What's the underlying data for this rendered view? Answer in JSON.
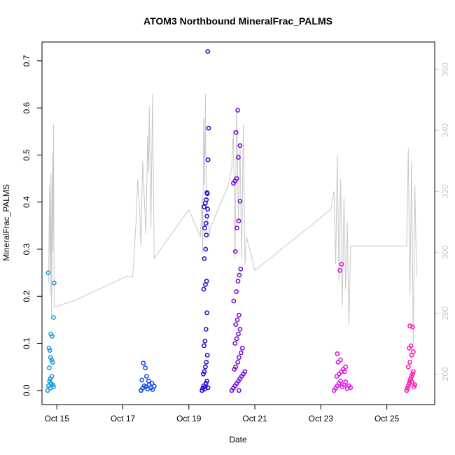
{
  "chart_data": {
    "type": "scatter",
    "title": "ATOM3 Northbound MineralFrac_PALMS",
    "xlabel": "Date",
    "ylabel": "MineralFrac_PALMS",
    "xlim": [
      14.55,
      26.45
    ],
    "ylim": [
      -0.03,
      0.74
    ],
    "y2lim": [
      250,
      369
    ],
    "x_ticks": [
      {
        "value": 15,
        "label": "Oct 15"
      },
      {
        "value": 17,
        "label": "Oct 17"
      },
      {
        "value": 19,
        "label": "Oct 19"
      },
      {
        "value": 21,
        "label": "Oct 21"
      },
      {
        "value": 23,
        "label": "Oct 23"
      },
      {
        "value": 25,
        "label": "Oct 25"
      }
    ],
    "y_ticks": [
      0.0,
      0.1,
      0.2,
      0.3,
      0.4,
      0.5,
      0.6,
      0.7
    ],
    "y_tick_labels": [
      "0.0",
      "0.1",
      "0.2",
      "0.3",
      "0.4",
      "0.5",
      "0.6",
      "0.7"
    ],
    "y2_ticks": [
      260,
      280,
      300,
      320,
      340,
      360
    ],
    "y2_tick_labels": [
      "260",
      "280",
      "300",
      "320",
      "340",
      "360"
    ],
    "colors": {
      "flight1": "#1e9be0",
      "flight2": "#1a4fe6",
      "flight3": "#2a10d8",
      "flight4": "#7a10d8",
      "flight5": "#e018e6",
      "flight6": "#ff1ab0",
      "altitude_line": "#c8c8c8"
    },
    "series": [
      {
        "color": "#1e9be0",
        "x": [
          14.72,
          14.75,
          14.78,
          14.8,
          14.82,
          14.85,
          14.88,
          14.9,
          14.76,
          14.79,
          14.81,
          14.84,
          14.87,
          14.77,
          14.82,
          14.86,
          14.9,
          14.92,
          14.74,
          14.8
        ],
        "y": [
          0.0,
          0.01,
          0.02,
          0.005,
          0.015,
          0.03,
          0.012,
          0.008,
          0.09,
          0.085,
          0.07,
          0.065,
          0.06,
          0.048,
          0.12,
          0.115,
          0.155,
          0.228,
          0.25,
          0.025
        ]
      },
      {
        "color": "#1a4fe6",
        "x": [
          17.55,
          17.6,
          17.65,
          17.7,
          17.75,
          17.8,
          17.85,
          17.9,
          17.95,
          17.62,
          17.68,
          17.72,
          17.78,
          17.58,
          17.88
        ],
        "y": [
          0.0,
          0.005,
          0.01,
          0.008,
          0.003,
          0.012,
          0.006,
          0.002,
          0.009,
          0.058,
          0.048,
          0.03,
          0.02,
          0.022,
          0.015
        ]
      },
      {
        "color": "#2a10d8",
        "x": [
          19.4,
          19.42,
          19.45,
          19.48,
          19.5,
          19.52,
          19.55,
          19.58,
          19.44,
          19.47,
          19.5,
          19.53,
          19.56,
          19.46,
          19.49,
          19.52,
          19.55,
          19.45,
          19.5,
          19.54,
          19.47,
          19.51,
          19.53,
          19.48,
          19.52,
          19.55,
          19.57
        ],
        "y": [
          0.0,
          0.005,
          0.01,
          0.003,
          0.008,
          0.015,
          0.02,
          0.006,
          0.035,
          0.04,
          0.05,
          0.06,
          0.075,
          0.095,
          0.105,
          0.13,
          0.165,
          0.215,
          0.225,
          0.232,
          0.28,
          0.3,
          0.33,
          0.345,
          0.355,
          0.37,
          0.385
        ]
      },
      {
        "color": "#2a10d8",
        "x": [
          19.46,
          19.5,
          19.53,
          19.56,
          19.58,
          19.6,
          19.55,
          19.57
        ],
        "y": [
          0.39,
          0.398,
          0.405,
          0.418,
          0.49,
          0.557,
          0.42,
          0.72
        ]
      },
      {
        "color": "#7a10d8",
        "x": [
          20.3,
          20.35,
          20.4,
          20.45,
          20.5,
          20.55,
          20.6,
          20.65,
          20.7,
          20.38,
          20.42,
          20.48,
          20.52,
          20.58,
          20.62,
          20.4,
          20.45,
          20.5,
          20.55,
          20.42,
          20.47,
          20.52,
          20.36,
          20.44,
          20.49,
          20.53,
          20.57,
          20.41,
          20.46,
          20.51,
          20.55
        ],
        "y": [
          0.0,
          0.005,
          0.01,
          0.015,
          0.02,
          0.025,
          0.03,
          0.035,
          0.04,
          0.045,
          0.05,
          0.06,
          0.07,
          0.08,
          0.09,
          0.1,
          0.11,
          0.12,
          0.13,
          0.14,
          0.15,
          0.16,
          0.19,
          0.21,
          0.232,
          0.245,
          0.258,
          0.295,
          0.345,
          0.36,
          0.402
        ]
      },
      {
        "color": "#7a10d8",
        "x": [
          20.35,
          20.4,
          20.45,
          20.5,
          20.55,
          20.43,
          20.48,
          20.52
        ],
        "y": [
          0.44,
          0.445,
          0.45,
          0.495,
          0.52,
          0.548,
          0.595,
          0.0
        ]
      },
      {
        "color": "#e018e6",
        "x": [
          23.4,
          23.45,
          23.5,
          23.55,
          23.6,
          23.65,
          23.7,
          23.75,
          23.8,
          23.85,
          23.9,
          23.48,
          23.55,
          23.62,
          23.68,
          23.75,
          23.52,
          23.6,
          23.5,
          23.58
        ],
        "y": [
          0.0,
          0.005,
          0.01,
          0.015,
          0.02,
          0.008,
          0.012,
          0.018,
          0.004,
          0.01,
          0.006,
          0.03,
          0.035,
          0.04,
          0.045,
          0.05,
          0.06,
          0.065,
          0.078,
          0.255
        ]
      },
      {
        "color": "#e018e6",
        "x": [
          23.63,
          23.72
        ],
        "y": [
          0.268,
          0.04
        ]
      },
      {
        "color": "#ff1ab0",
        "x": [
          25.6,
          25.62,
          25.65,
          25.68,
          25.7,
          25.72,
          25.75,
          25.78,
          25.8,
          25.82,
          25.85,
          25.65,
          25.7,
          25.75,
          25.8,
          25.68,
          25.73,
          25.78,
          25.7,
          25.76
        ],
        "y": [
          0.0,
          0.005,
          0.01,
          0.015,
          0.02,
          0.025,
          0.03,
          0.035,
          0.04,
          0.008,
          0.012,
          0.05,
          0.06,
          0.075,
          0.082,
          0.09,
          0.095,
          0.135,
          0.137,
          0.018
        ]
      }
    ],
    "altitude_line": {
      "color": "#c8c8c8",
      "x": [
        14.75,
        14.78,
        14.8,
        14.82,
        14.84,
        14.86,
        14.88,
        14.9,
        14.92,
        15.5,
        17.1,
        17.3,
        17.4,
        17.45,
        17.5,
        17.55,
        17.6,
        17.65,
        17.7,
        17.75,
        17.78,
        17.8,
        17.85,
        17.9,
        17.95,
        19.0,
        19.35,
        19.4,
        19.42,
        19.45,
        19.48,
        19.5,
        19.52,
        19.55,
        19.58,
        19.6,
        19.62,
        19.65,
        20.2,
        20.3,
        20.35,
        20.4,
        20.45,
        20.5,
        20.55,
        20.6,
        20.65,
        20.7,
        20.75,
        21.0,
        23.3,
        23.4,
        23.45,
        23.5,
        23.55,
        23.6,
        23.65,
        23.7,
        23.75,
        23.8,
        23.85,
        23.9,
        25.6,
        25.65,
        25.7,
        25.75,
        25.8,
        25.85,
        25.9
      ],
      "y": [
        290,
        322,
        286,
        326,
        278,
        332,
        300,
        342,
        282,
        284,
        292,
        292,
        310,
        324,
        316,
        302,
        330,
        318,
        306,
        338,
        326,
        348,
        308,
        352,
        298,
        314,
        305,
        318,
        300,
        344,
        322,
        352,
        330,
        312,
        310,
        310,
        305,
        308,
        322,
        328,
        340,
        298,
        348,
        310,
        335,
        298,
        342,
        296,
        305,
        294,
        314,
        320,
        296,
        332,
        290,
        324,
        282,
        318,
        288,
        310,
        276,
        302,
        302,
        334,
        286,
        330,
        270,
        322,
        292
      ]
    }
  }
}
